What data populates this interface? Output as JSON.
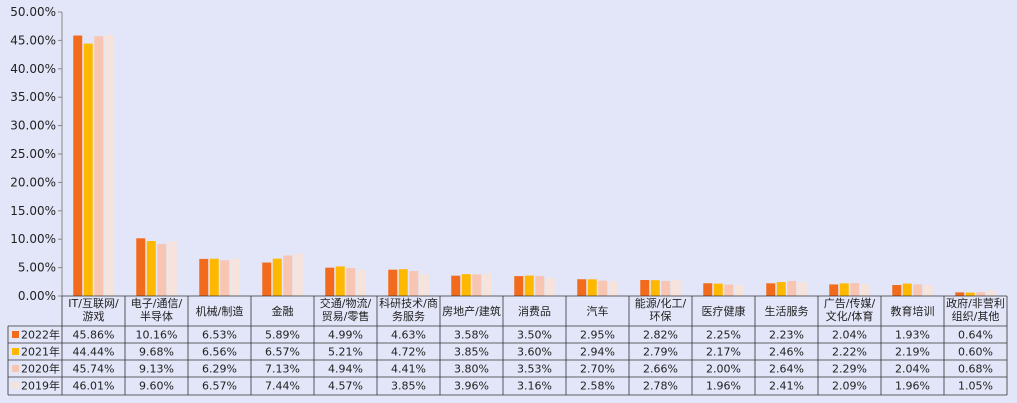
{
  "chart_data": {
    "type": "bar",
    "ylim": [
      0,
      50
    ],
    "yticks": [
      "0.00%",
      "5.00%",
      "10.00%",
      "15.00%",
      "20.00%",
      "25.00%",
      "30.00%",
      "35.00%",
      "40.00%",
      "45.00%",
      "50.00%"
    ],
    "categories": [
      [
        "IT/互联网/",
        "游戏"
      ],
      [
        "电子/通信/",
        "半导体"
      ],
      [
        "机械/制造"
      ],
      [
        "金融"
      ],
      [
        "交通/物流/",
        "贸易/零售"
      ],
      [
        "科研技术/商",
        "务服务"
      ],
      [
        "房地产/建筑"
      ],
      [
        "消费品"
      ],
      [
        "汽车"
      ],
      [
        "能源/化工/",
        "环保"
      ],
      [
        "医疗健康"
      ],
      [
        "生活服务"
      ],
      [
        "广告/传媒/",
        "文化/体育"
      ],
      [
        "教育培训"
      ],
      [
        "政府/非营利",
        "组织/其他"
      ]
    ],
    "series": [
      {
        "name": "2022年",
        "color": "#f26b1d",
        "values": [
          45.86,
          10.16,
          6.53,
          5.89,
          4.99,
          4.63,
          3.58,
          3.5,
          2.95,
          2.82,
          2.25,
          2.23,
          2.04,
          1.93,
          0.64
        ],
        "labels": [
          "45.86%",
          "10.16%",
          "6.53%",
          "5.89%",
          "4.99%",
          "4.63%",
          "3.58%",
          "3.50%",
          "2.95%",
          "2.82%",
          "2.25%",
          "2.23%",
          "2.04%",
          "1.93%",
          "0.64%"
        ]
      },
      {
        "name": "2021年",
        "color": "#ffb800",
        "values": [
          44.44,
          9.68,
          6.56,
          6.57,
          5.21,
          4.72,
          3.85,
          3.6,
          2.94,
          2.79,
          2.17,
          2.46,
          2.22,
          2.19,
          0.6
        ],
        "labels": [
          "44.44%",
          "9.68%",
          "6.56%",
          "6.57%",
          "5.21%",
          "4.72%",
          "3.85%",
          "3.60%",
          "2.94%",
          "2.79%",
          "2.17%",
          "2.46%",
          "2.22%",
          "2.19%",
          "0.60%"
        ]
      },
      {
        "name": "2020年",
        "color": "#f7c5b2",
        "values": [
          45.74,
          9.13,
          6.29,
          7.13,
          4.94,
          4.41,
          3.8,
          3.53,
          2.7,
          2.66,
          2.0,
          2.64,
          2.29,
          2.04,
          0.68
        ],
        "labels": [
          "45.74%",
          "9.13%",
          "6.29%",
          "7.13%",
          "4.94%",
          "4.41%",
          "3.80%",
          "3.53%",
          "2.70%",
          "2.66%",
          "2.00%",
          "2.64%",
          "2.29%",
          "2.04%",
          "0.68%"
        ]
      },
      {
        "name": "2019年",
        "color": "#f6e3dc",
        "values": [
          46.01,
          9.6,
          6.57,
          7.44,
          4.57,
          3.85,
          3.96,
          3.16,
          2.58,
          2.78,
          1.96,
          2.41,
          2.09,
          1.96,
          1.05
        ],
        "labels": [
          "46.01%",
          "9.60%",
          "6.57%",
          "7.44%",
          "4.57%",
          "3.85%",
          "3.96%",
          "3.16%",
          "2.58%",
          "2.78%",
          "1.96%",
          "2.41%",
          "2.09%",
          "1.96%",
          "1.05%"
        ]
      }
    ]
  }
}
